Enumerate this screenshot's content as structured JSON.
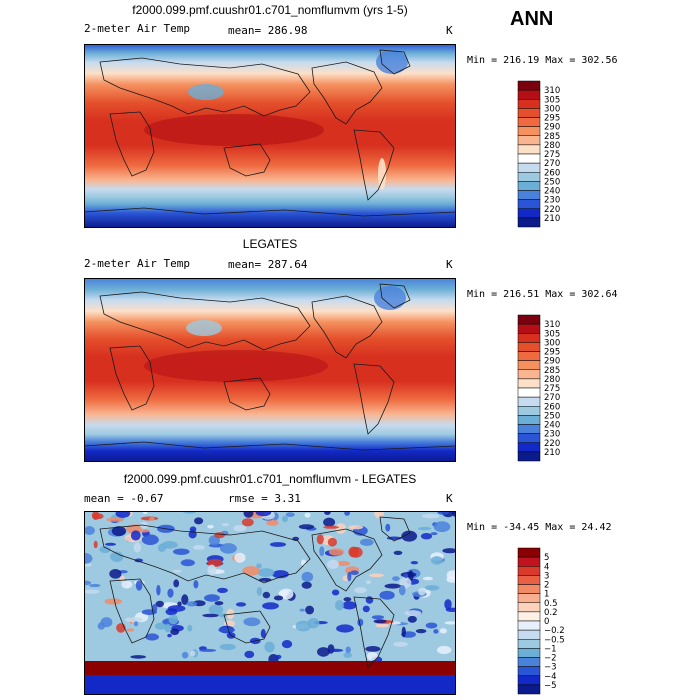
{
  "season": "ANN",
  "panels": [
    {
      "title": "f2000.099.pmf.cuushr01.c701_nomflumvm (yrs 1-5)",
      "left_label": "2-meter Air Temp",
      "center_label": "mean=  286.98",
      "units": "K",
      "stats": "Min = 216.19  Max = 302.56",
      "colorbar": {
        "labels": [
          "310",
          "305",
          "300",
          "295",
          "290",
          "285",
          "280",
          "275",
          "270",
          "260",
          "250",
          "240",
          "230",
          "220",
          "210"
        ],
        "colors": [
          "#7a0010",
          "#b40f16",
          "#d7301f",
          "#e4502b",
          "#ef6a40",
          "#f5915f",
          "#f9b590",
          "#fde0c8",
          "#ffffff",
          "#c6dbef",
          "#9ecae1",
          "#6baed6",
          "#4a82db",
          "#2a55d6",
          "#1229c8",
          "#0b1a8c"
        ]
      }
    },
    {
      "title": "LEGATES",
      "left_label": "2-meter Air Temp",
      "center_label": "mean=  287.64",
      "units": "K",
      "stats": "Min = 216.51  Max = 302.64",
      "colorbar": {
        "labels": [
          "310",
          "305",
          "300",
          "295",
          "290",
          "285",
          "280",
          "275",
          "270",
          "260",
          "250",
          "240",
          "230",
          "220",
          "210"
        ],
        "colors": [
          "#7a0010",
          "#b40f16",
          "#d7301f",
          "#e4502b",
          "#ef6a40",
          "#f5915f",
          "#f9b590",
          "#fde0c8",
          "#ffffff",
          "#c6dbef",
          "#9ecae1",
          "#6baed6",
          "#4a82db",
          "#2a55d6",
          "#1229c8",
          "#0b1a8c"
        ]
      }
    },
    {
      "title": "f2000.099.pmf.cuushr01.c701_nomflumvm - LEGATES",
      "left_label": "mean =   -0.67",
      "center_label": "rmse =    3.31",
      "units": "K",
      "stats": "Min = -34.45  Max =  24.42",
      "colorbar": {
        "labels": [
          "5",
          "4",
          "3",
          "2",
          "1",
          "0.5",
          "0.2",
          "0",
          "-0.2",
          "-0.5",
          "-1",
          "-2",
          "-3",
          "-4",
          "-5"
        ],
        "colors": [
          "#8b0000",
          "#c1121f",
          "#d93a2b",
          "#ea6045",
          "#f38a66",
          "#f8ae8f",
          "#fcd2bd",
          "#fff0e6",
          "#e8f0fb",
          "#c6dbef",
          "#9ecae1",
          "#6baed6",
          "#4a82db",
          "#2a55d6",
          "#1229c8",
          "#0b1a8c"
        ]
      }
    }
  ],
  "chart_data": [
    {
      "type": "heatmap",
      "title": "f2000.099.pmf.cuushr01.c701_nomflumvm (yrs 1-5)",
      "variable": "2-meter Air Temp",
      "units": "K",
      "mean": 286.98,
      "min": 216.19,
      "max": 302.56,
      "contour_levels": [
        210,
        220,
        230,
        240,
        250,
        260,
        270,
        275,
        280,
        285,
        290,
        295,
        300,
        305,
        310
      ]
    },
    {
      "type": "heatmap",
      "title": "LEGATES",
      "variable": "2-meter Air Temp",
      "units": "K",
      "mean": 287.64,
      "min": 216.51,
      "max": 302.64,
      "contour_levels": [
        210,
        220,
        230,
        240,
        250,
        260,
        270,
        275,
        280,
        285,
        290,
        295,
        300,
        305,
        310
      ]
    },
    {
      "type": "heatmap",
      "title": "f2000.099.pmf.cuushr01.c701_nomflumvm - LEGATES",
      "units": "K",
      "mean": -0.67,
      "rmse": 3.31,
      "min": -34.45,
      "max": 24.42,
      "contour_levels": [
        -5,
        -4,
        -3,
        -2,
        -1,
        -0.5,
        -0.2,
        0,
        0.2,
        0.5,
        1,
        2,
        3,
        4,
        5
      ]
    }
  ]
}
